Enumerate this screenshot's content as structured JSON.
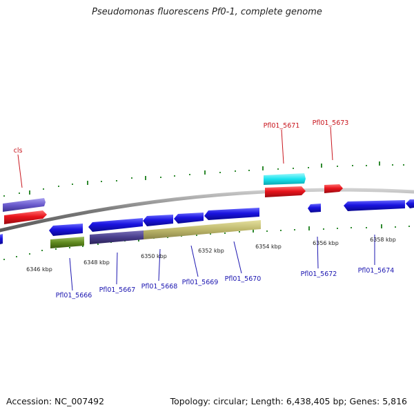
{
  "title": "Pseudomonas fluorescens Pf0-1, complete genome",
  "footer": {
    "accession": "Accession: NC_007492",
    "summary": "Topology: circular; Length: 6,438,405 bp; Genes: 5,816"
  },
  "colors": {
    "backbone": "#8a8a8a",
    "tick": "#2f8a2f",
    "gene_forward": "#e8141c",
    "gene_reverse": "#1a14e0",
    "gene_forward_label": "#c8141c",
    "gene_reverse_label": "#1a14b0",
    "gene_misc_forward": "#6a5acd",
    "gene_cyan": "#19e3ee",
    "gene_olive": "#5f8a1e",
    "gene_darkslate": "#483d8b",
    "gene_khaki": "#bdb76b"
  },
  "scale": {
    "unit": "kbp",
    "labels": [
      "6346 kbp",
      "6348 kbp",
      "6350 kbp",
      "6352 kbp",
      "6354 kbp",
      "6356 kbp",
      "6358 kbp"
    ]
  },
  "genes_top": [
    {
      "name": "cls",
      "strand": "forward"
    },
    {
      "name": "Pfl01_5671",
      "strand": "forward"
    },
    {
      "name": "Pfl01_5673",
      "strand": "forward"
    }
  ],
  "genes_bottom": [
    {
      "name": "Pfl01_5666",
      "strand": "reverse"
    },
    {
      "name": "Pfl01_5667",
      "strand": "reverse"
    },
    {
      "name": "Pfl01_5668",
      "strand": "reverse"
    },
    {
      "name": "Pfl01_5669",
      "strand": "reverse"
    },
    {
      "name": "Pfl01_5670",
      "strand": "reverse"
    },
    {
      "name": "Pfl01_5672",
      "strand": "reverse"
    },
    {
      "name": "Pfl01_5674",
      "strand": "reverse"
    }
  ]
}
